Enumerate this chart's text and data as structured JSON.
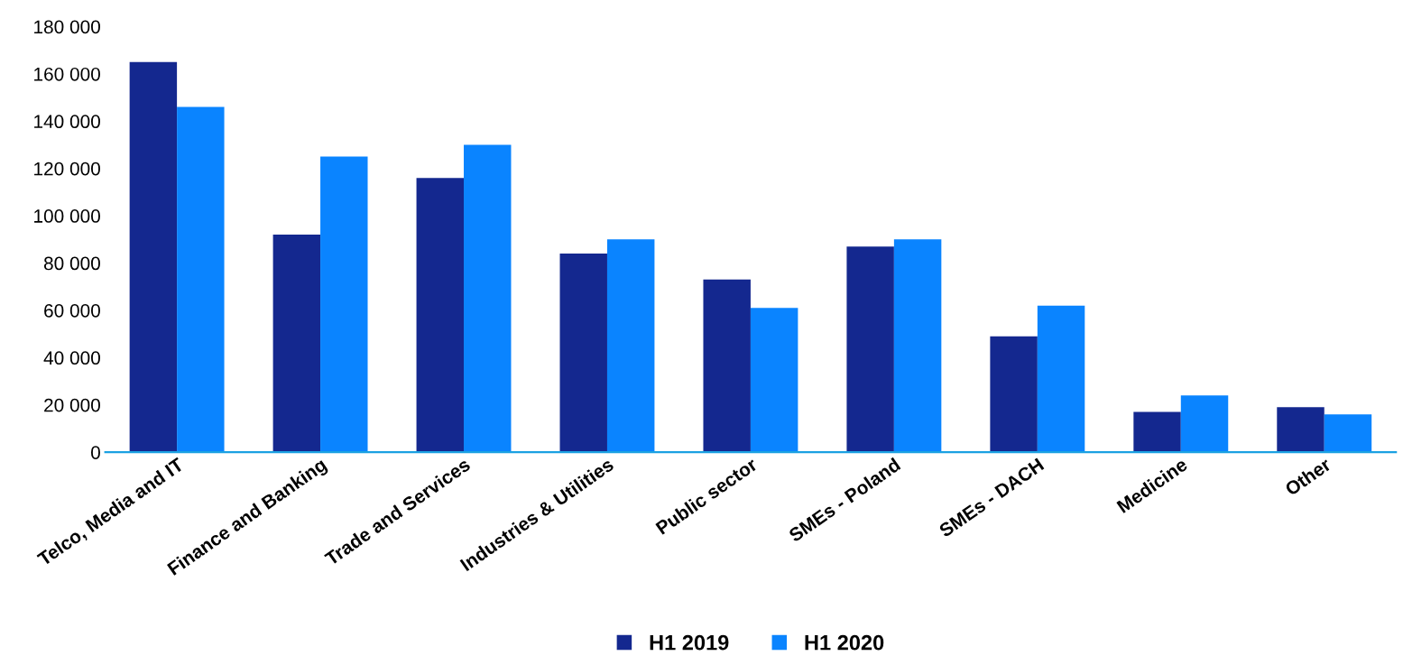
{
  "chart_data": {
    "type": "bar",
    "categories": [
      "Telco, Media and IT",
      "Finance and Banking",
      "Trade and Services",
      "Industries & Utilities",
      "Public sector",
      "SMEs - Poland",
      "SMEs - DACH",
      "Medicine",
      "Other"
    ],
    "series": [
      {
        "name": "H1 2019",
        "color": "#14288f",
        "values": [
          165000,
          92000,
          116000,
          84000,
          73000,
          87000,
          49000,
          17000,
          19000
        ]
      },
      {
        "name": "H1 2020",
        "color": "#0a84ff",
        "values": [
          146000,
          125000,
          130000,
          90000,
          61000,
          90000,
          62000,
          24000,
          16000
        ]
      }
    ],
    "ylim": [
      0,
      180000
    ],
    "yticks": [
      0,
      {
        "value": 20000,
        "label": "20 000"
      },
      {
        "value": 40000,
        "label": "40 000"
      },
      {
        "value": 60000,
        "label": "60 000"
      },
      {
        "value": 80000,
        "label": "80 000"
      },
      {
        "value": 100000,
        "label": "100 000"
      },
      {
        "value": 120000,
        "label": "120 000"
      },
      {
        "value": 140000,
        "label": "140 000"
      },
      {
        "value": 160000,
        "label": "160 000"
      },
      {
        "value": 180000,
        "label": "180 000"
      }
    ],
    "grid": false,
    "legend": "bottom"
  }
}
